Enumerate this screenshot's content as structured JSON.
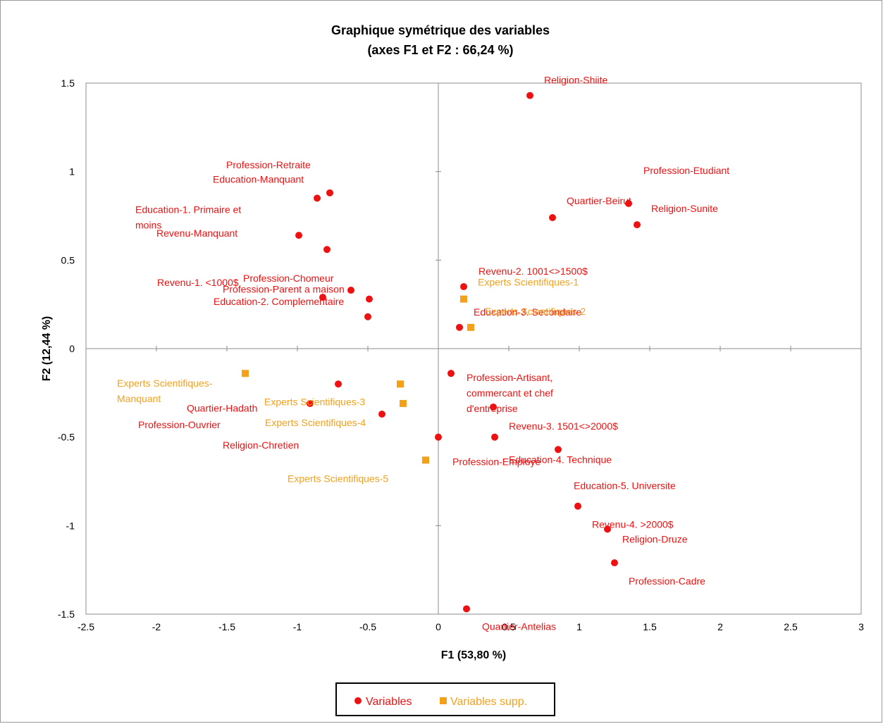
{
  "chart_data": {
    "type": "scatter",
    "title": "Graphique symétrique des variables",
    "subtitle": "(axes F1 et F2 : 66,24 %)",
    "xlabel": "F1 (53,80 %)",
    "ylabel": "F2 (12,44 %)",
    "xlim": [
      -2.5,
      3
    ],
    "ylim": [
      -1.5,
      1.5
    ],
    "xticks": [
      -2.5,
      -2,
      -1.5,
      -1,
      -0.5,
      0,
      0.5,
      1,
      1.5,
      2,
      2.5,
      3
    ],
    "yticks": [
      -1.5,
      -1,
      -0.5,
      0,
      0.5,
      1,
      1.5
    ],
    "xtick_labels": [
      "-2.5",
      "-2",
      "-1.5",
      "-1",
      "-0.5",
      "0",
      "0.5",
      "1",
      "1.5",
      "2",
      "2.5",
      "3"
    ],
    "ytick_labels": [
      "-1.5",
      "-1",
      "-0.5",
      "0",
      "0.5",
      "1",
      "1.5"
    ],
    "grid": false,
    "legend_position": "bottom",
    "series": [
      {
        "name": "Variables",
        "color": "#ee1111",
        "marker": "circle",
        "points": [
          {
            "label": "Religion-Shiite",
            "x": 0.65,
            "y": 1.43
          },
          {
            "label": "Profession-Retraite",
            "x": -0.77,
            "y": 0.88
          },
          {
            "label": "Education-Manquant",
            "x": -0.86,
            "y": 0.85
          },
          {
            "label": "Education-1. Primaire et moins",
            "x": -0.79,
            "y": 0.56
          },
          {
            "label": "Revenu-Manquant",
            "x": -0.99,
            "y": 0.64
          },
          {
            "label": "Profession-Etudiant",
            "x": 1.35,
            "y": 0.82
          },
          {
            "label": "Quartier-Beirut",
            "x": 0.81,
            "y": 0.74
          },
          {
            "label": "Religion-Sunite",
            "x": 1.41,
            "y": 0.7
          },
          {
            "label": "Profession-Chomeur",
            "x": -0.62,
            "y": 0.33
          },
          {
            "label": "Revenu-1. <1000$",
            "x": -0.82,
            "y": 0.29
          },
          {
            "label": "Profession-Parent a maison",
            "x": -0.49,
            "y": 0.28
          },
          {
            "label": "Education-2. Complementaire",
            "x": -0.5,
            "y": 0.18
          },
          {
            "label": "Revenu-2. 1001<>1500$",
            "x": 0.18,
            "y": 0.35
          },
          {
            "label": "Education-3. Secondaire",
            "x": 0.15,
            "y": 0.12
          },
          {
            "label": "Profession-Artisant, commercant et chef d'entreprise",
            "x": 0.09,
            "y": -0.14
          },
          {
            "label": "Quartier-Hadath",
            "x": -0.71,
            "y": -0.2
          },
          {
            "label": "Profession-Ouvrier",
            "x": -0.91,
            "y": -0.31
          },
          {
            "label": "Religion-Chretien",
            "x": -0.4,
            "y": -0.37
          },
          {
            "label": "Revenu-3. 1501<>2000$",
            "x": 0.39,
            "y": -0.33
          },
          {
            "label": "Education-4. Technique",
            "x": 0.4,
            "y": -0.5
          },
          {
            "label": "Profession-Employe",
            "x": 0.0,
            "y": -0.5
          },
          {
            "label": "Education-5. Universite",
            "x": 0.85,
            "y": -0.57
          },
          {
            "label": "Revenu-4. >2000$",
            "x": 0.99,
            "y": -0.89
          },
          {
            "label": "Religion-Druze",
            "x": 1.2,
            "y": -1.02
          },
          {
            "label": "Profession-Cadre",
            "x": 1.25,
            "y": -1.21
          },
          {
            "label": "Quartier-Antelias",
            "x": 0.2,
            "y": -1.47
          }
        ]
      },
      {
        "name": "Variables supp.",
        "color": "#f5a01a",
        "marker": "square",
        "points": [
          {
            "label": "Experts Scientifiques-1",
            "x": 0.18,
            "y": 0.28
          },
          {
            "label": "Experts Scientifiques-2",
            "x": 0.23,
            "y": 0.12
          },
          {
            "label": "Experts Scientifiques-Manquant",
            "x": -1.37,
            "y": -0.14
          },
          {
            "label": "Experts Scientifiques-3",
            "x": -0.27,
            "y": -0.2
          },
          {
            "label": "Experts Scientifiques-4",
            "x": -0.25,
            "y": -0.31
          },
          {
            "label": "Experts Scientifiques-5",
            "x": -0.09,
            "y": -0.63
          }
        ]
      }
    ]
  }
}
